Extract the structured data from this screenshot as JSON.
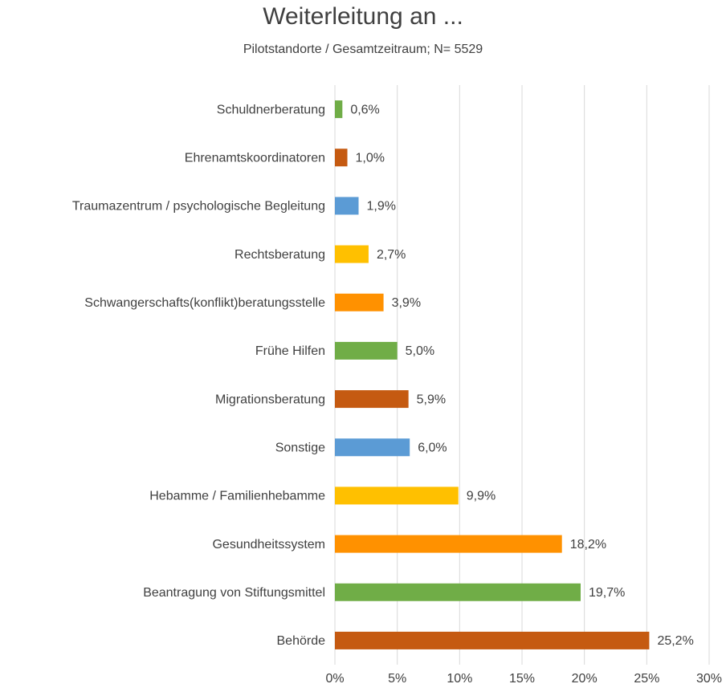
{
  "chart_data": {
    "type": "barh",
    "title": "Weiterleitung an ...",
    "subtitle": "Pilotstandorte / Gesamtzeitraum; N= 5529",
    "categories": [
      "Schuldnerberatung",
      "Ehrenamtskoordinatoren",
      "Traumazentrum / psychologische Begleitung",
      "Rechtsberatung",
      "Schwangerschafts(konflikt)beratungsstelle",
      "Frühe Hilfen",
      "Migrationsberatung",
      "Sonstige",
      "Hebamme / Familienhebamme",
      "Gesundheitssystem",
      "Beantragung von Stiftungsmittel",
      "Behörde"
    ],
    "values": [
      0.6,
      1.0,
      1.9,
      2.7,
      3.9,
      5.0,
      5.9,
      6.0,
      9.9,
      18.2,
      19.7,
      25.2
    ],
    "value_labels": [
      "0,6%",
      "1,0%",
      "1,9%",
      "2,7%",
      "3,9%",
      "5,0%",
      "5,9%",
      "6,0%",
      "9,9%",
      "18,2%",
      "19,7%",
      "25,2%"
    ],
    "colors": [
      "#70ad47",
      "#c55a11",
      "#5b9bd5",
      "#ffc000",
      "#ff9100",
      "#70ad47",
      "#c55a11",
      "#5b9bd5",
      "#ffc000",
      "#ff9100",
      "#70ad47",
      "#c55a11"
    ],
    "xlim": [
      0,
      30
    ],
    "xticks": [
      {
        "value": 0,
        "label": "0%"
      },
      {
        "value": 5,
        "label": "5%"
      },
      {
        "value": 10,
        "label": "10%"
      },
      {
        "value": 15,
        "label": "15%"
      },
      {
        "value": 20,
        "label": "20%"
      },
      {
        "value": 25,
        "label": "25%"
      },
      {
        "value": 30,
        "label": "30%"
      }
    ],
    "grid": true
  }
}
